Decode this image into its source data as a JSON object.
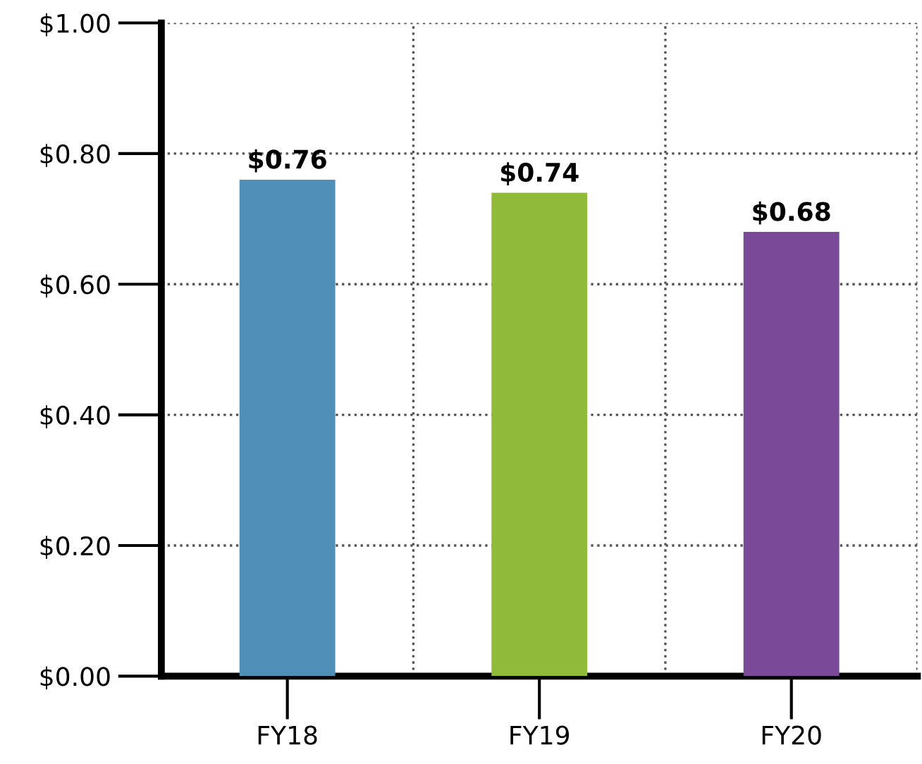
{
  "chart_data": {
    "type": "bar",
    "categories": [
      "FY18",
      "FY19",
      "FY20"
    ],
    "values": [
      0.76,
      0.74,
      0.68
    ],
    "colors": [
      "#4f8fb8",
      "#8fba3a",
      "#7a4a98"
    ],
    "value_labels": [
      "$0.76",
      "$0.74",
      "$0.68"
    ],
    "ylim": [
      0,
      1
    ],
    "yticks": [
      {
        "value": 0,
        "label": "$0.00"
      },
      {
        "value": 0.2,
        "label": "$0.20"
      },
      {
        "value": 0.4,
        "label": "$0.40"
      },
      {
        "value": 0.6,
        "label": "$0.60"
      },
      {
        "value": 0.8,
        "label": "$0.80"
      },
      {
        "value": 1,
        "label": "$1.00"
      }
    ],
    "grid": true
  }
}
